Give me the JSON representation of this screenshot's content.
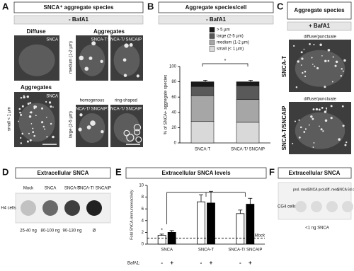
{
  "panel_a": {
    "letter": "A",
    "title": "SNCA⁺ aggregate species",
    "condition": "- BafA1",
    "col_diffuse": "Diffuse",
    "col_aggregates": "Aggregates",
    "row_medium": "medium (1-2 µm)",
    "row_aggregates": "Aggregates",
    "row_small": "small < 1 µm",
    "row_large": "large (2-5 µm)",
    "label_homogenous": "homogenous",
    "label_ring": "ring-shaped",
    "images": [
      "SNCA",
      "SNCA-T",
      "SNCA-T/ SNCAIP",
      "SNCA",
      "SNCA-T/ SNCAIP",
      "SNCA-T/ SNCAIP"
    ]
  },
  "panel_b": {
    "letter": "B",
    "title": "Aggregate species/cell",
    "condition": "- BafA1"
  },
  "panel_c": {
    "letter": "C",
    "title": "Aggregate species",
    "condition": "+ BafA1",
    "caption_1": "diffuse/punctuate",
    "row_1": "SNCA-T",
    "caption_2": "diffuse/punctuate",
    "row_2": "SNCA-T/SNCAIP"
  },
  "panel_d": {
    "letter": "D",
    "title": "Extracellular SNCA",
    "row_label": "H4 cells",
    "columns": [
      "Mock",
      "SNCA",
      "SNCA-T",
      "SNCA-T/ SNCAIP"
    ],
    "amounts": [
      "25-40 ng",
      "80-100 ng",
      "90-130 ng",
      "Ø"
    ]
  },
  "panel_e": {
    "letter": "E",
    "title": "Extracellular SNCA levels"
  },
  "panel_f": {
    "letter": "F",
    "title": "Extracellular SNCA",
    "row_label": "CG4 cells",
    "columns": [
      "prol. med.",
      "SNCA prol.",
      "diff. med.",
      "SNCA 6d diff."
    ],
    "amount": "<1 ng SNCA"
  },
  "chart_data": [
    {
      "type": "stacked_bar",
      "y_label": "% of SNCA+ aggregate species",
      "categories": [
        "SNCA-T",
        "SNCA-T/ SNCAIP"
      ],
      "series": [
        {
          "name": "small (< 1 µm)",
          "color": "#d9d9d9",
          "values": [
            28,
            27
          ],
          "errors": [
            5,
            4
          ]
        },
        {
          "name": "medium (1-2 µm)",
          "color": "#a6a6a6",
          "values": [
            34,
            30
          ],
          "errors": [
            4,
            5
          ]
        },
        {
          "name": "large (2-5 µm)",
          "color": "#595959",
          "values": [
            12,
            18
          ],
          "errors": [
            3,
            4
          ]
        },
        {
          "name": "> 5 µm",
          "color": "#1a1a1a",
          "values": [
            6,
            5
          ],
          "errors": [
            2,
            2
          ]
        }
      ],
      "ylim": [
        0,
        100
      ],
      "yticks": [
        0,
        20,
        40,
        60,
        80,
        100
      ],
      "significance": "*"
    },
    {
      "type": "bar",
      "y_label": "Fold SNCA-immunoreactivity",
      "categories": [
        "SNCA",
        "SNCA-T",
        "SNCA-T/ SNCAIP"
      ],
      "series": [
        {
          "name": "-",
          "color": "#ffffff",
          "values": [
            1.5,
            7.2,
            5.2
          ],
          "errors": [
            0.2,
            1.2,
            0.6
          ]
        },
        {
          "name": "+",
          "color": "#000000",
          "values": [
            2.0,
            7.0,
            6.8
          ],
          "errors": [
            0.3,
            2.0,
            1.0
          ]
        }
      ],
      "ylim": [
        0,
        10
      ],
      "yticks": [
        0,
        2,
        4,
        6,
        8,
        10
      ],
      "reference_line": {
        "value": 1,
        "label": "Mock"
      },
      "x_row_label": "BafA1:",
      "annotation": "*"
    }
  ]
}
